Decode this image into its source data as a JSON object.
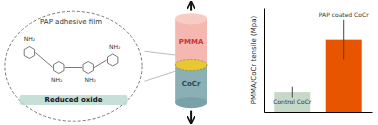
{
  "chart_data": {
    "type": "bar",
    "categories": [
      "Control CoCr",
      "PAP coated CoCr"
    ],
    "values": [
      0.22,
      0.8
    ],
    "errors": [
      0.06,
      0.22
    ],
    "colors": [
      "#c8d8c8",
      "#e85500"
    ],
    "ylabel": "PMMA/CoCr tensile (Mpa)",
    "ylim": [
      0,
      1.15
    ],
    "yticks": [],
    "tick_labels": false,
    "annotations": [
      "PAP adhesive film",
      "Reduced oxide",
      "PMMA",
      "CoCr",
      "NH₂",
      "NH₂",
      "NH₂",
      "NH₂"
    ]
  }
}
